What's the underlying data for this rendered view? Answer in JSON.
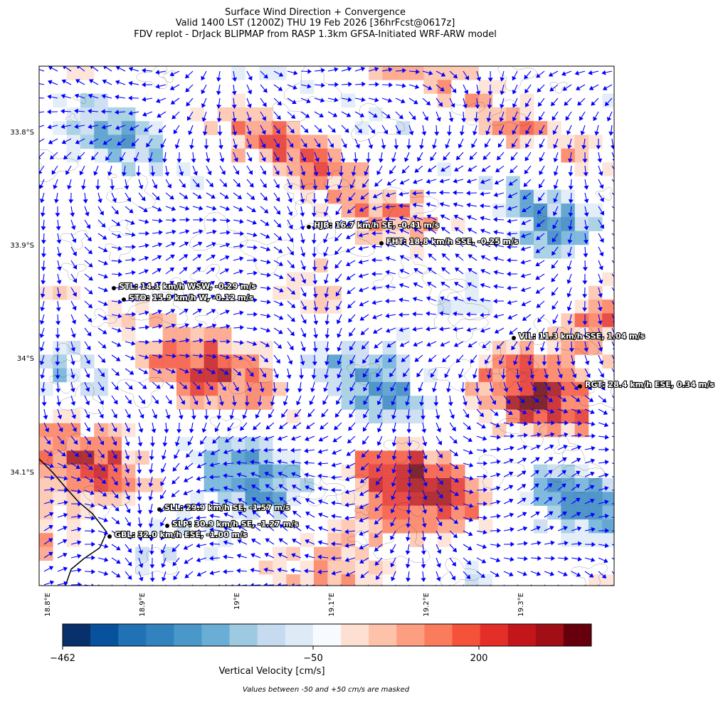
{
  "title": [
    "Surface Wind Direction + Convergence",
    "Valid 1400 LST (1200Z) THU 19 Feb 2026 [36hrFcst@0617z]",
    "FDV replot - DrJack BLIPMAP from RASP 1.3km GFSA-Initiated WRF-ARW model"
  ],
  "map": {
    "y_ticks": [
      "33.8°S",
      "33.9°S",
      "34°S",
      "34.1°S"
    ],
    "x_ticks": [
      "18.8°E",
      "18.9°E",
      "19°E",
      "19.1°E",
      "19.2°E",
      "19.3°E"
    ],
    "stations": [
      "HJB: 16.7 km/h SE, -0.41 m/s",
      "FHT: 18.8 km/h SSE, -0.25 m/s",
      "STL: 14.1 km/h WSW, -0.29 m/s",
      "STO: 15.9 km/h W, -0.12 m/s",
      "VIL: 11.3 km/h SSE, 1.04 m/s",
      "RGT: 28.4 km/h ESE, 0.34 m/s",
      "SLL: 29.9 km/h SE, -1.57 m/s",
      "SLP: 30.9 km/h SE, -1.27 m/s",
      "GBL: 32.0 km/h ESE, -1.00 m/s"
    ],
    "arrow_color": "#0000ff"
  },
  "colorbar": {
    "tick_labels": [
      "−462",
      "−50",
      "200"
    ],
    "label": "Vertical Velocity [cm/s]",
    "colors": [
      "#08306b",
      "#08519c",
      "#2171b5",
      "#3282bf",
      "#4a98c9",
      "#6aaed6",
      "#9ecae1",
      "#c6dbef",
      "#deebf7",
      "#f7fbff",
      "#fee0d3",
      "#fdc2a9",
      "#fc9f81",
      "#fb7c5c",
      "#f5523a",
      "#e32f27",
      "#c3161b",
      "#a10e15",
      "#67000d"
    ]
  },
  "note": "Values between -50 and +50 cm/s are masked"
}
